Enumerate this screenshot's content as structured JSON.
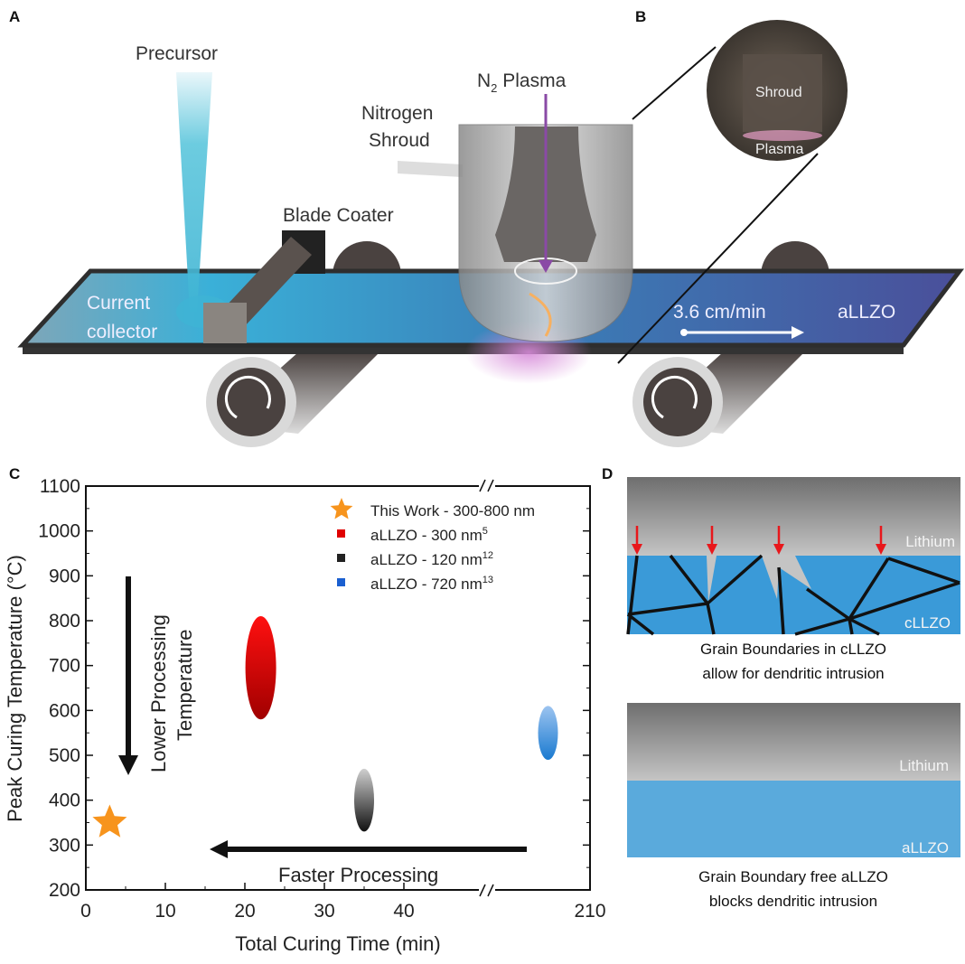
{
  "panels": {
    "a": "A",
    "b": "B",
    "c": "C",
    "d": "D"
  },
  "panel_a": {
    "precursor": "Precursor",
    "n2_plasma_n": "N",
    "n2_plasma_sub": "2",
    "n2_plasma_rest": " Plasma",
    "nitrogen_shroud_line1": "Nitrogen",
    "nitrogen_shroud_line2": "Shroud",
    "blade_coater": "Blade Coater",
    "current_collector_line1": "Current",
    "current_collector_line2": "collector",
    "speed": "3.6 cm/min",
    "film": "aLLZO"
  },
  "panel_b": {
    "shroud": "Shroud",
    "plasma": "Plasma"
  },
  "chart_data": {
    "type": "scatter",
    "xlabel": "Total Curing Time (min)",
    "ylabel": "Peak Curing Temperature (°C)",
    "xticks": [
      "0",
      "10",
      "20",
      "30",
      "40",
      "210"
    ],
    "yticks": [
      "200",
      "300",
      "400",
      "500",
      "600",
      "700",
      "800",
      "900",
      "1000",
      "1100"
    ],
    "ylim": [
      200,
      1100
    ],
    "xlim": [
      0,
      210
    ],
    "x_axis_break": true,
    "grid": false,
    "legend_position": "top-right",
    "series": [
      {
        "name": "This Work - 300-800 nm",
        "marker": "star",
        "color": "#f7941d",
        "x": 3,
        "y": 350
      },
      {
        "name": "aLLZO - 300 nm",
        "ref": "5",
        "marker": "ellipse",
        "color": "#e00000",
        "x": 22,
        "y": 700,
        "y_range": [
          580,
          810
        ]
      },
      {
        "name": "aLLZO - 120 nm",
        "ref": "12",
        "marker": "ellipse",
        "color": "#222222",
        "x": 35,
        "y": 400,
        "y_range": [
          330,
          470
        ]
      },
      {
        "name": "aLLZO - 720 nm",
        "ref": "13",
        "marker": "ellipse",
        "color": "#1a5fd0",
        "x": 195,
        "y": 550,
        "y_range": [
          490,
          610
        ]
      }
    ],
    "annotations": {
      "vertical_line1": "Lower Processing",
      "vertical_line2": "Temperature",
      "horizontal": "Faster Processing"
    }
  },
  "panel_d": {
    "top_lithium": "Lithium",
    "top_material": "cLLZO",
    "top_caption_line1": "Grain Boundaries in cLLZO",
    "top_caption_line2": "allow for dendritic intrusion",
    "bottom_lithium": "Lithium",
    "bottom_material": "aLLZO",
    "bottom_caption_line1": "Grain Boundary free aLLZO",
    "bottom_caption_line2": "blocks dendritic intrusion",
    "colors": {
      "electrolyte": "#3a9ad8",
      "arrow": "#e8171b"
    }
  }
}
